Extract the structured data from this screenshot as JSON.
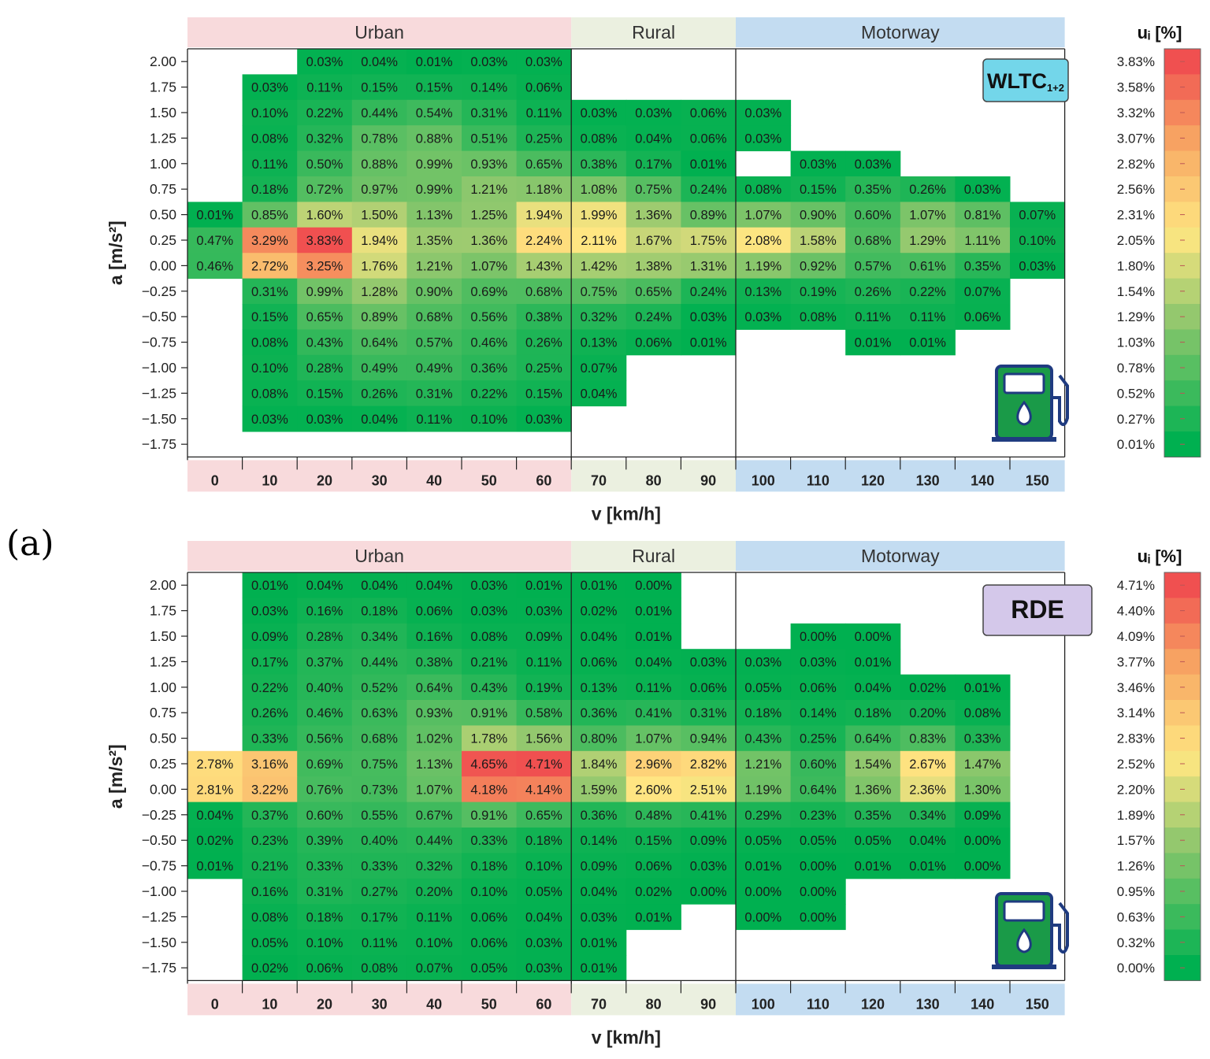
{
  "panel_label": "(a)",
  "chart_data": [
    {
      "type": "heatmap",
      "badge": "WLTC",
      "badge_sub": "1+2",
      "badge_color": "#73d6ea",
      "xlabel": "v [km/h]",
      "ylabel": "a [m/s²]",
      "colorbar_title": "uᵢ [%]",
      "zones": [
        {
          "name": "Urban",
          "from": 0,
          "to": 7,
          "color": "#f8dadc"
        },
        {
          "name": "Rural",
          "from": 7,
          "to": 10,
          "color": "#ebf0e0"
        },
        {
          "name": "Motorway",
          "from": 10,
          "to": 16,
          "color": "#c3dcf1"
        }
      ],
      "x_ticks": [
        "0",
        "10",
        "20",
        "30",
        "40",
        "50",
        "60",
        "70",
        "80",
        "90",
        "100",
        "110",
        "120",
        "130",
        "140",
        "150"
      ],
      "y_ticks": [
        "2.00",
        "1.75",
        "1.50",
        "1.25",
        "1.00",
        "0.75",
        "0.50",
        "0.25",
        "0.00",
        "−0.25",
        "−0.50",
        "−0.75",
        "−1.00",
        "−1.25",
        "−1.50",
        "−1.75"
      ],
      "vmax": 3.83,
      "colorbar_ticks": [
        "3.83%",
        "3.58%",
        "3.32%",
        "3.07%",
        "2.82%",
        "2.56%",
        "2.31%",
        "2.05%",
        "1.80%",
        "1.54%",
        "1.29%",
        "1.03%",
        "0.78%",
        "0.52%",
        "0.27%",
        "0.01%"
      ],
      "cells": [
        [
          null,
          null,
          0.03,
          0.04,
          0.01,
          0.03,
          0.03,
          null,
          null,
          null,
          null,
          null,
          null,
          null,
          null,
          null
        ],
        [
          null,
          0.03,
          0.11,
          0.15,
          0.15,
          0.14,
          0.06,
          null,
          null,
          null,
          null,
          null,
          null,
          null,
          null,
          null
        ],
        [
          null,
          0.1,
          0.22,
          0.44,
          0.54,
          0.31,
          0.11,
          0.03,
          0.03,
          0.06,
          0.03,
          null,
          null,
          null,
          null,
          null
        ],
        [
          null,
          0.08,
          0.32,
          0.78,
          0.88,
          0.51,
          0.25,
          0.08,
          0.04,
          0.06,
          0.03,
          null,
          null,
          null,
          null,
          null
        ],
        [
          null,
          0.11,
          0.5,
          0.88,
          0.99,
          0.93,
          0.65,
          0.38,
          0.17,
          0.01,
          null,
          0.03,
          0.03,
          null,
          null,
          null
        ],
        [
          null,
          0.18,
          0.72,
          0.97,
          0.99,
          1.21,
          1.18,
          1.08,
          0.75,
          0.24,
          0.08,
          0.15,
          0.35,
          0.26,
          0.03,
          null
        ],
        [
          0.01,
          0.85,
          1.6,
          1.5,
          1.13,
          1.25,
          1.94,
          1.99,
          1.36,
          0.89,
          1.07,
          0.9,
          0.6,
          1.07,
          0.81,
          0.07
        ],
        [
          0.47,
          3.29,
          3.83,
          1.94,
          1.35,
          1.36,
          2.24,
          2.11,
          1.67,
          1.75,
          2.08,
          1.58,
          0.68,
          1.29,
          1.11,
          0.1
        ],
        [
          0.46,
          2.72,
          3.25,
          1.76,
          1.21,
          1.07,
          1.43,
          1.42,
          1.38,
          1.31,
          1.19,
          0.92,
          0.57,
          0.61,
          0.35,
          0.03
        ],
        [
          null,
          0.31,
          0.99,
          1.28,
          0.9,
          0.69,
          0.68,
          0.75,
          0.65,
          0.24,
          0.13,
          0.19,
          0.26,
          0.22,
          0.07,
          null
        ],
        [
          null,
          0.15,
          0.65,
          0.89,
          0.68,
          0.56,
          0.38,
          0.32,
          0.24,
          0.03,
          0.03,
          0.08,
          0.11,
          0.11,
          0.06,
          null
        ],
        [
          null,
          0.08,
          0.43,
          0.64,
          0.57,
          0.46,
          0.26,
          0.13,
          0.06,
          0.01,
          null,
          null,
          0.01,
          0.01,
          null,
          null
        ],
        [
          null,
          0.1,
          0.28,
          0.49,
          0.49,
          0.36,
          0.25,
          0.07,
          null,
          null,
          null,
          null,
          null,
          null,
          null,
          null
        ],
        [
          null,
          0.08,
          0.15,
          0.26,
          0.31,
          0.22,
          0.15,
          0.04,
          null,
          null,
          null,
          null,
          null,
          null,
          null,
          null
        ],
        [
          null,
          0.03,
          0.03,
          0.04,
          0.11,
          0.1,
          0.03,
          null,
          null,
          null,
          null,
          null,
          null,
          null,
          null,
          null
        ],
        [
          null,
          null,
          null,
          null,
          null,
          null,
          null,
          null,
          null,
          null,
          null,
          null,
          null,
          null,
          null,
          null
        ]
      ]
    },
    {
      "type": "heatmap",
      "badge": "RDE",
      "badge_sub": "",
      "badge_color": "#d4c8ea",
      "xlabel": "v [km/h]",
      "ylabel": "a [m/s²]",
      "colorbar_title": "uᵢ [%]",
      "zones": [
        {
          "name": "Urban",
          "from": 0,
          "to": 7,
          "color": "#f8dadc"
        },
        {
          "name": "Rural",
          "from": 7,
          "to": 10,
          "color": "#ebf0e0"
        },
        {
          "name": "Motorway",
          "from": 10,
          "to": 16,
          "color": "#c3dcf1"
        }
      ],
      "x_ticks": [
        "0",
        "10",
        "20",
        "30",
        "40",
        "50",
        "60",
        "70",
        "80",
        "90",
        "100",
        "110",
        "120",
        "130",
        "140",
        "150"
      ],
      "y_ticks": [
        "2.00",
        "1.75",
        "1.50",
        "1.25",
        "1.00",
        "0.75",
        "0.50",
        "0.25",
        "0.00",
        "−0.25",
        "−0.50",
        "−0.75",
        "−1.00",
        "−1.25",
        "−1.50",
        "−1.75"
      ],
      "vmax": 4.71,
      "colorbar_ticks": [
        "4.71%",
        "4.40%",
        "4.09%",
        "3.77%",
        "3.46%",
        "3.14%",
        "2.83%",
        "2.52%",
        "2.20%",
        "1.89%",
        "1.57%",
        "1.26%",
        "0.95%",
        "0.63%",
        "0.32%",
        "0.00%"
      ],
      "cells": [
        [
          null,
          0.01,
          0.04,
          0.04,
          0.04,
          0.03,
          0.01,
          0.01,
          0.0,
          null,
          null,
          null,
          null,
          null,
          null,
          null
        ],
        [
          null,
          0.03,
          0.16,
          0.18,
          0.06,
          0.03,
          0.03,
          0.02,
          0.01,
          null,
          null,
          null,
          null,
          null,
          null,
          null
        ],
        [
          null,
          0.09,
          0.28,
          0.34,
          0.16,
          0.08,
          0.09,
          0.04,
          0.01,
          null,
          null,
          0.0,
          0.0,
          null,
          null,
          null
        ],
        [
          null,
          0.17,
          0.37,
          0.44,
          0.38,
          0.21,
          0.11,
          0.06,
          0.04,
          0.03,
          0.03,
          0.03,
          0.01,
          null,
          null,
          null
        ],
        [
          null,
          0.22,
          0.4,
          0.52,
          0.64,
          0.43,
          0.19,
          0.13,
          0.11,
          0.06,
          0.05,
          0.06,
          0.04,
          0.02,
          0.01,
          null
        ],
        [
          null,
          0.26,
          0.46,
          0.63,
          0.93,
          0.91,
          0.58,
          0.36,
          0.41,
          0.31,
          0.18,
          0.14,
          0.18,
          0.2,
          0.08,
          null
        ],
        [
          null,
          0.33,
          0.56,
          0.68,
          1.02,
          1.78,
          1.56,
          0.8,
          1.07,
          0.94,
          0.43,
          0.25,
          0.64,
          0.83,
          0.33,
          null
        ],
        [
          2.78,
          3.16,
          0.69,
          0.75,
          1.13,
          4.65,
          4.71,
          1.84,
          2.96,
          2.82,
          1.21,
          0.6,
          1.54,
          2.67,
          1.47,
          null
        ],
        [
          2.81,
          3.22,
          0.76,
          0.73,
          1.07,
          4.18,
          4.14,
          1.59,
          2.6,
          2.51,
          1.19,
          0.64,
          1.36,
          2.36,
          1.3,
          null
        ],
        [
          0.04,
          0.37,
          0.6,
          0.55,
          0.67,
          0.91,
          0.65,
          0.36,
          0.48,
          0.41,
          0.29,
          0.23,
          0.35,
          0.34,
          0.09,
          null
        ],
        [
          0.02,
          0.23,
          0.39,
          0.4,
          0.44,
          0.33,
          0.18,
          0.14,
          0.15,
          0.09,
          0.05,
          0.05,
          0.05,
          0.04,
          0.0,
          null
        ],
        [
          0.01,
          0.21,
          0.33,
          0.33,
          0.32,
          0.18,
          0.1,
          0.09,
          0.06,
          0.03,
          0.01,
          0.0,
          0.01,
          0.01,
          0.0,
          null
        ],
        [
          null,
          0.16,
          0.31,
          0.27,
          0.2,
          0.1,
          0.05,
          0.04,
          0.02,
          0.0,
          0.0,
          0.0,
          null,
          null,
          null,
          null
        ],
        [
          null,
          0.08,
          0.18,
          0.17,
          0.11,
          0.06,
          0.04,
          0.03,
          0.01,
          null,
          0.0,
          0.0,
          null,
          null,
          null,
          null
        ],
        [
          null,
          0.05,
          0.1,
          0.11,
          0.1,
          0.06,
          0.03,
          0.01,
          null,
          null,
          null,
          null,
          null,
          null,
          null,
          null
        ],
        [
          null,
          0.02,
          0.06,
          0.08,
          0.07,
          0.05,
          0.03,
          0.01,
          null,
          null,
          null,
          null,
          null,
          null,
          null,
          null
        ]
      ]
    }
  ]
}
